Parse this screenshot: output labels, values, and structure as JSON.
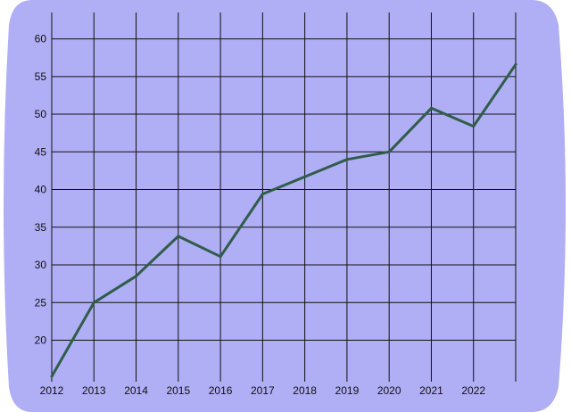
{
  "chart_data": {
    "type": "line",
    "title": "",
    "xlabel": "",
    "ylabel": "",
    "x": [
      2012,
      2013,
      2014,
      2015,
      2016,
      2017,
      2018,
      2019,
      2020,
      2021,
      2022,
      2023
    ],
    "x_tick_labels": [
      "2012",
      "2013",
      "2014",
      "2015",
      "2016",
      "2017",
      "2018",
      "2019",
      "2020",
      "2021",
      "2022"
    ],
    "y_tick_labels": [
      "20",
      "25",
      "30",
      "35",
      "40",
      "45",
      "50",
      "55",
      "60"
    ],
    "series": [
      {
        "values": [
          15.2,
          25.0,
          28.5,
          33.8,
          31.1,
          39.4,
          41.7,
          44.0,
          45.0,
          50.8,
          48.4,
          56.6
        ]
      }
    ],
    "xlim": [
      2012,
      2023
    ],
    "ylim": [
      14.5,
      63.5
    ],
    "grid": true,
    "legend": "none",
    "colors": {
      "background": "#b0aef5",
      "line": "#2f5d4a",
      "grid": "#111111"
    }
  }
}
